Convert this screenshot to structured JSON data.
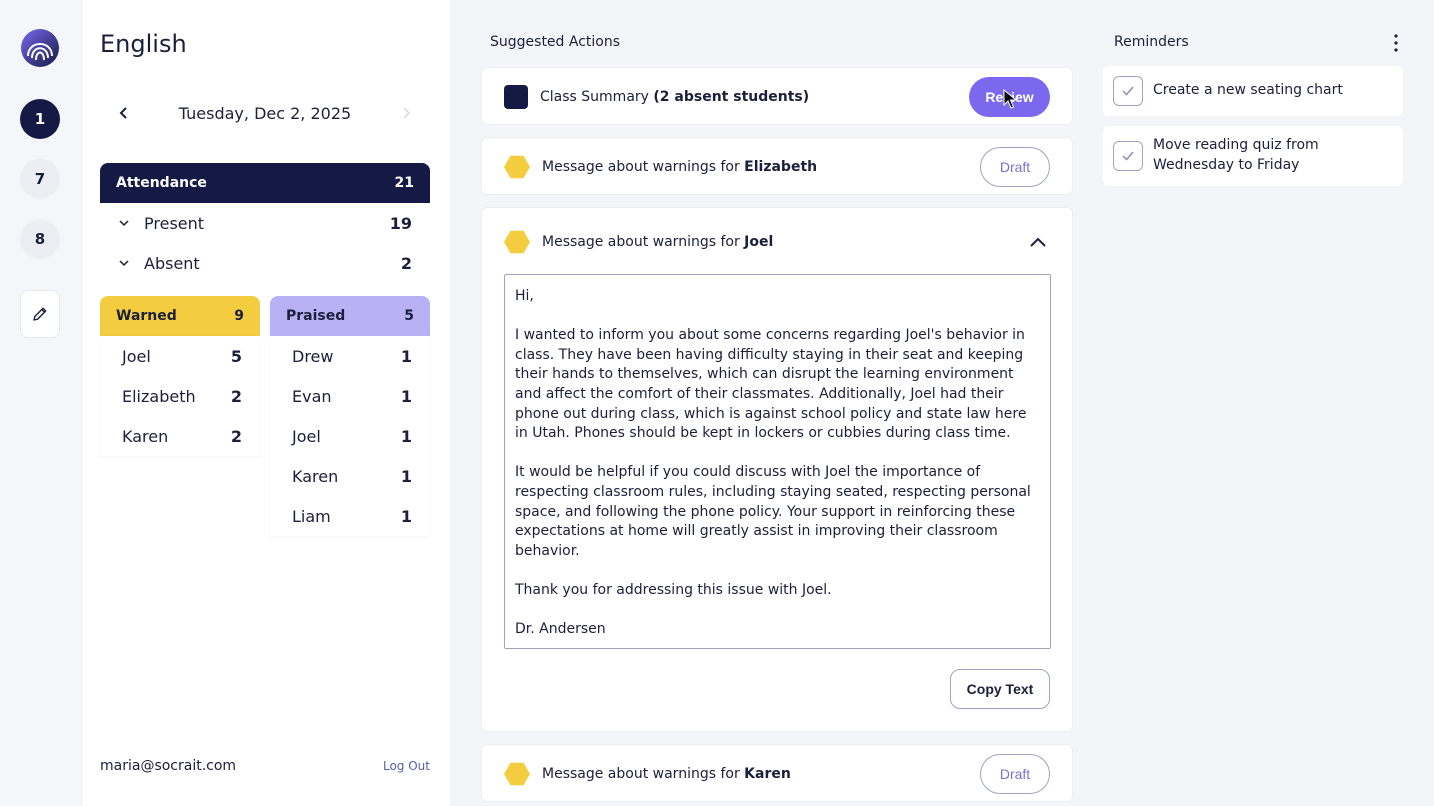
{
  "rail": {
    "items": [
      {
        "label": "1"
      },
      {
        "label": "7"
      },
      {
        "label": "8"
      }
    ]
  },
  "sidebar": {
    "class_title": "English",
    "date": "Tuesday, Dec 2, 2025",
    "attendance": {
      "label": "Attendance",
      "total": "21",
      "rows": [
        {
          "label": "Present",
          "count": "19"
        },
        {
          "label": "Absent",
          "count": "2"
        }
      ]
    },
    "warned": {
      "label": "Warned",
      "count": "9",
      "rows": [
        {
          "name": "Joel",
          "count": "5"
        },
        {
          "name": "Elizabeth",
          "count": "2"
        },
        {
          "name": "Karen",
          "count": "2"
        }
      ]
    },
    "praised": {
      "label": "Praised",
      "count": "5",
      "rows": [
        {
          "name": "Drew",
          "count": "1"
        },
        {
          "name": "Evan",
          "count": "1"
        },
        {
          "name": "Joel",
          "count": "1"
        },
        {
          "name": "Karen",
          "count": "1"
        },
        {
          "name": "Liam",
          "count": "1"
        }
      ]
    },
    "email": "maria@socrait.com",
    "logout_label": "Log Out"
  },
  "main": {
    "title": "Suggested Actions",
    "actions": [
      {
        "prefix": "Class Summary ",
        "bold": "(2 absent students)",
        "button": "Review"
      },
      {
        "prefix": "Message about warnings for ",
        "bold": "Elizabeth",
        "button": "Draft"
      },
      {
        "prefix": "Message about warnings for ",
        "bold": "Joel"
      },
      {
        "prefix": "Message about warnings for ",
        "bold": "Karen",
        "button": "Draft"
      }
    ],
    "message": {
      "greeting": "Hi,",
      "p1": "I wanted to inform you about some concerns regarding Joel's behavior in class. They have been having difficulty staying in their seat and keeping their hands to themselves, which can disrupt the learning environment and affect the comfort of their classmates. Additionally, Joel had their phone out during class, which is against school policy and state law here in Utah. Phones should be kept in lockers or cubbies during class time.",
      "p2": "It would be helpful if you could discuss with Joel the importance of respecting classroom rules, including staying seated, respecting personal space, and following the phone policy. Your support in reinforcing these expectations at home will greatly assist in improving their classroom behavior.",
      "p3": "Thank you for addressing this issue with Joel.",
      "signature": "Dr. Andersen"
    },
    "copy_label": "Copy Text"
  },
  "reminders": {
    "title": "Reminders",
    "items": [
      {
        "text": "Create a new seating chart"
      },
      {
        "text": "Move reading quiz from Wednesday to Friday"
      }
    ]
  },
  "colors": {
    "navy": "#141a44",
    "warned_yellow": "#f4cc3f",
    "praised_purple": "#bab1f4",
    "review_purple": "#7b68ee"
  },
  "icons": [
    "logo-icon",
    "pencil-icon",
    "chevron-left-icon",
    "chevron-right-icon",
    "chevron-down-icon",
    "chevron-up-icon",
    "hexagon-icon",
    "square-icon",
    "checkmark-icon",
    "more-vertical-icon",
    "mouse-cursor-icon"
  ]
}
